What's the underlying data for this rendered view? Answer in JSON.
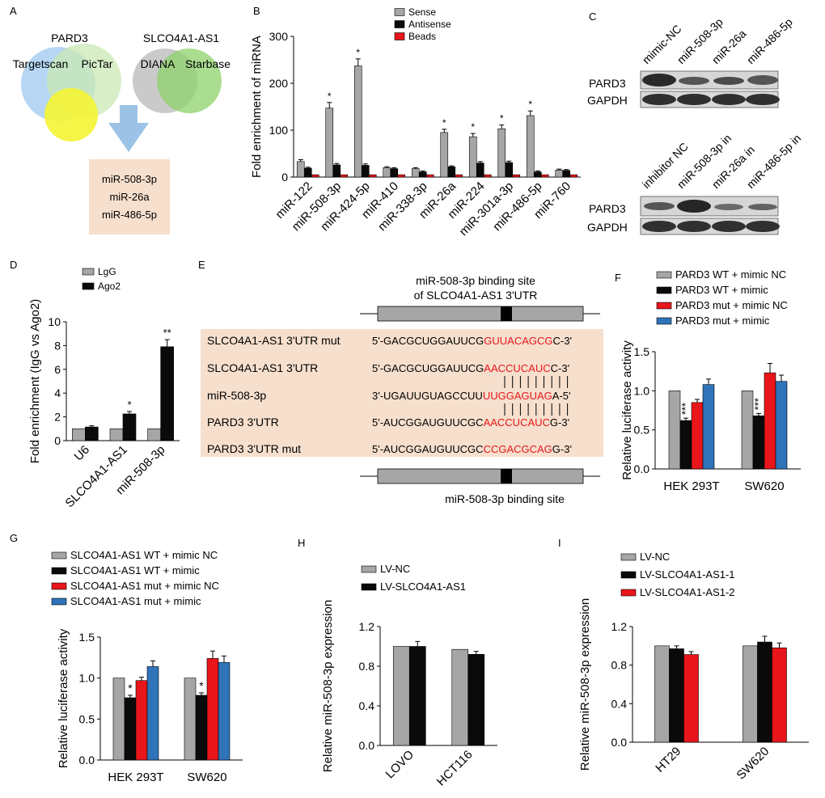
{
  "panel_letters": {
    "A": "A",
    "B": "B",
    "C": "C",
    "D": "D",
    "E": "E",
    "F": "F",
    "G": "G",
    "H": "H",
    "I": "I"
  },
  "colors": {
    "gray": "#a6a6a6",
    "black": "#0a0a0a",
    "red": "#e8161b",
    "blue": "#2f74b9",
    "peach": "#f6dfcd",
    "venn_blue": "#a9cff2",
    "venn_green1": "#c9e8b3",
    "venn_yellow": "#f4f433",
    "venn_gray": "#c4c4c4",
    "venn_green2": "#8ed16a",
    "arrow": "#9cc3e6",
    "seq_red": "#e8161b"
  },
  "venn": {
    "left_title": "PARD3",
    "right_title": "SLCO4A1-AS1",
    "left_labels": [
      "Targetscan",
      "PicTar"
    ],
    "right_labels": [
      "DIANA",
      "Starbase"
    ],
    "results": [
      "miR-508-3p",
      "miR-26a",
      "miR-486-5p"
    ]
  },
  "western": {
    "top_lanes": [
      "mimic-NC",
      "miR-508-3p",
      "miR-26a",
      "miR-486-5p"
    ],
    "bottom_lanes": [
      "inhibitor NC",
      "miR-508-3p in",
      "miR-26a in",
      "miR-486-5p in"
    ],
    "row_labels": [
      "PARD3",
      "GAPDH"
    ]
  },
  "seq_panel": {
    "top_caption": [
      "miR-508-3p binding site",
      "of SLCO4A1-AS1 3'UTR"
    ],
    "bottom_caption": "miR-508-3p binding site",
    "rows": [
      {
        "label": "SLCO4A1-AS1 3'UTR mut",
        "prefix": "5'-GACGCUGGAUUCG",
        "site": "GUUACAGCG",
        "suffix": "C-3'"
      },
      {
        "label": "SLCO4A1-AS1 3'UTR",
        "prefix": "5'-GACGCUGGAUUCG",
        "site": "AACCUCAUC",
        "suffix": "C-3'"
      },
      {
        "label": "miR-508-3p",
        "prefix": "3'-UGAUUGUAGCCUU",
        "site": "UUGGAGUAG",
        "suffix": "A-5'"
      },
      {
        "label": "PARD3 3'UTR",
        "prefix": "5'-AUCGGAUGUUCGC",
        "site": "AACCUCAUC",
        "suffix": "G-3'"
      },
      {
        "label": "PARD3 3'UTR  mut",
        "prefix": "5'-AUCGGAUGUUCGC",
        "site": "CCGACGCAG",
        "suffix": "G-3'"
      }
    ]
  },
  "chart_data": [
    {
      "id": "B",
      "type": "bar",
      "ylabel": "Fold enrichment of miRNA",
      "ylim": [
        0,
        300
      ],
      "yticks": [
        0,
        100,
        200,
        300
      ],
      "categories": [
        "miR-122",
        "miR-508-3p",
        "miR-424-5p",
        "miR-410",
        "miR-338-3p",
        "miR-26a",
        "miR-224",
        "miR-301a-3p",
        "miR-486-5p",
        "miR-760"
      ],
      "series": [
        {
          "name": "Sense",
          "color": "#a6a6a6",
          "values": [
            33,
            147,
            237,
            20,
            18,
            95,
            86,
            103,
            131,
            15
          ],
          "errors": [
            4,
            12,
            15,
            2,
            2,
            7,
            7,
            8,
            10,
            2
          ]
        },
        {
          "name": "Antisense",
          "color": "#0a0a0a",
          "values": [
            19,
            26,
            25,
            18,
            11,
            22,
            30,
            31,
            11,
            14
          ],
          "errors": [
            2,
            3,
            3,
            2,
            2,
            2,
            3,
            3,
            2,
            2
          ]
        },
        {
          "name": "Beads",
          "color": "#e8161b",
          "values": [
            5,
            5,
            5,
            5,
            5,
            5,
            5,
            5,
            5,
            5
          ],
          "errors": [
            0,
            0,
            0,
            0,
            0,
            0,
            0,
            0,
            0,
            0
          ]
        }
      ],
      "stars": [
        "",
        "*",
        "*",
        "",
        "",
        "*",
        "*",
        "*",
        "*",
        ""
      ]
    },
    {
      "id": "D",
      "type": "bar",
      "ylabel": "Fold enrichment (IgG vs Ago2)",
      "ylim": [
        0,
        10
      ],
      "yticks": [
        0,
        2,
        4,
        6,
        8,
        10
      ],
      "categories": [
        "U6",
        "SLCO4A1-AS1",
        "miR-508-3p"
      ],
      "series": [
        {
          "name": "LgG",
          "color": "#a6a6a6",
          "values": [
            1.0,
            1.0,
            1.0
          ],
          "errors": [
            0,
            0,
            0
          ]
        },
        {
          "name": "Ago2",
          "color": "#0a0a0a",
          "values": [
            1.15,
            2.25,
            7.9
          ],
          "errors": [
            0.1,
            0.2,
            0.6
          ]
        }
      ],
      "stars": [
        "",
        "*",
        "**"
      ]
    },
    {
      "id": "F",
      "type": "bar",
      "ylabel": "Relative luciferase activity",
      "ylim": [
        0,
        1.5
      ],
      "yticks": [
        0.0,
        0.5,
        1.0,
        1.5
      ],
      "categories": [
        "HEK 293T",
        "SW620"
      ],
      "series": [
        {
          "name": "PARD3 WT + mimic NC",
          "color": "#a6a6a6",
          "values": [
            1.0,
            1.0
          ],
          "errors": [
            0,
            0
          ]
        },
        {
          "name": "PARD3 WT + mimic",
          "color": "#0a0a0a",
          "values": [
            0.62,
            0.68
          ],
          "errors": [
            0.03,
            0.03
          ]
        },
        {
          "name": "PARD3 mut + mimic NC",
          "color": "#e8161b",
          "values": [
            0.85,
            1.23
          ],
          "errors": [
            0.04,
            0.12
          ]
        },
        {
          "name": "PARD3 mut + mimic",
          "color": "#2f74b9",
          "values": [
            1.08,
            1.12
          ],
          "errors": [
            0.07,
            0.08
          ]
        }
      ],
      "stars": [
        "***",
        "***"
      ]
    },
    {
      "id": "G",
      "type": "bar",
      "ylabel": "Relative luciferase activity",
      "ylim": [
        0,
        1.5
      ],
      "yticks": [
        0.0,
        0.5,
        1.0,
        1.5
      ],
      "categories": [
        "HEK 293T",
        "SW620"
      ],
      "series": [
        {
          "name": "SLCO4A1-AS1 WT + mimic NC",
          "color": "#a6a6a6",
          "values": [
            1.0,
            1.0
          ],
          "errors": [
            0,
            0
          ]
        },
        {
          "name": "SLCO4A1-AS1 WT + mimic",
          "color": "#0a0a0a",
          "values": [
            0.76,
            0.79
          ],
          "errors": [
            0.03,
            0.03
          ]
        },
        {
          "name": "SLCO4A1-AS1 mut + mimic NC",
          "color": "#e8161b",
          "values": [
            0.97,
            1.24
          ],
          "errors": [
            0.04,
            0.09
          ]
        },
        {
          "name": "SLCO4A1-AS1 mut + mimic",
          "color": "#2f74b9",
          "values": [
            1.14,
            1.19
          ],
          "errors": [
            0.07,
            0.08
          ]
        }
      ],
      "stars": [
        "*",
        "*"
      ]
    },
    {
      "id": "H",
      "type": "bar",
      "ylabel": "Relative miR-508-3p expression",
      "ylim": [
        0,
        1.2
      ],
      "yticks": [
        0.0,
        0.4,
        0.8,
        1.2
      ],
      "categories": [
        "LOVO",
        "HCT116"
      ],
      "series": [
        {
          "name": "LV-NC",
          "color": "#a6a6a6",
          "values": [
            1.0,
            0.97
          ],
          "errors": [
            0,
            0
          ]
        },
        {
          "name": "LV-SLCO4A1-AS1",
          "color": "#0a0a0a",
          "values": [
            1.0,
            0.92
          ],
          "errors": [
            0.05,
            0.03
          ]
        }
      ],
      "stars": [
        "",
        ""
      ]
    },
    {
      "id": "I",
      "type": "bar",
      "ylabel": "Relative miR-508-3p expression",
      "ylim": [
        0,
        1.2
      ],
      "yticks": [
        0.0,
        0.4,
        0.8,
        1.2
      ],
      "categories": [
        "HT29",
        "SW620"
      ],
      "series": [
        {
          "name": "LV-NC",
          "color": "#a6a6a6",
          "values": [
            1.0,
            1.0
          ],
          "errors": [
            0,
            0
          ]
        },
        {
          "name": "LV-SLCO4A1-AS1-1",
          "color": "#0a0a0a",
          "values": [
            0.97,
            1.04
          ],
          "errors": [
            0.03,
            0.06
          ]
        },
        {
          "name": "LV-SLCO4A1-AS1-2",
          "color": "#e8161b",
          "values": [
            0.91,
            0.98
          ],
          "errors": [
            0.03,
            0.05
          ]
        }
      ],
      "stars": [
        "",
        ""
      ]
    }
  ]
}
